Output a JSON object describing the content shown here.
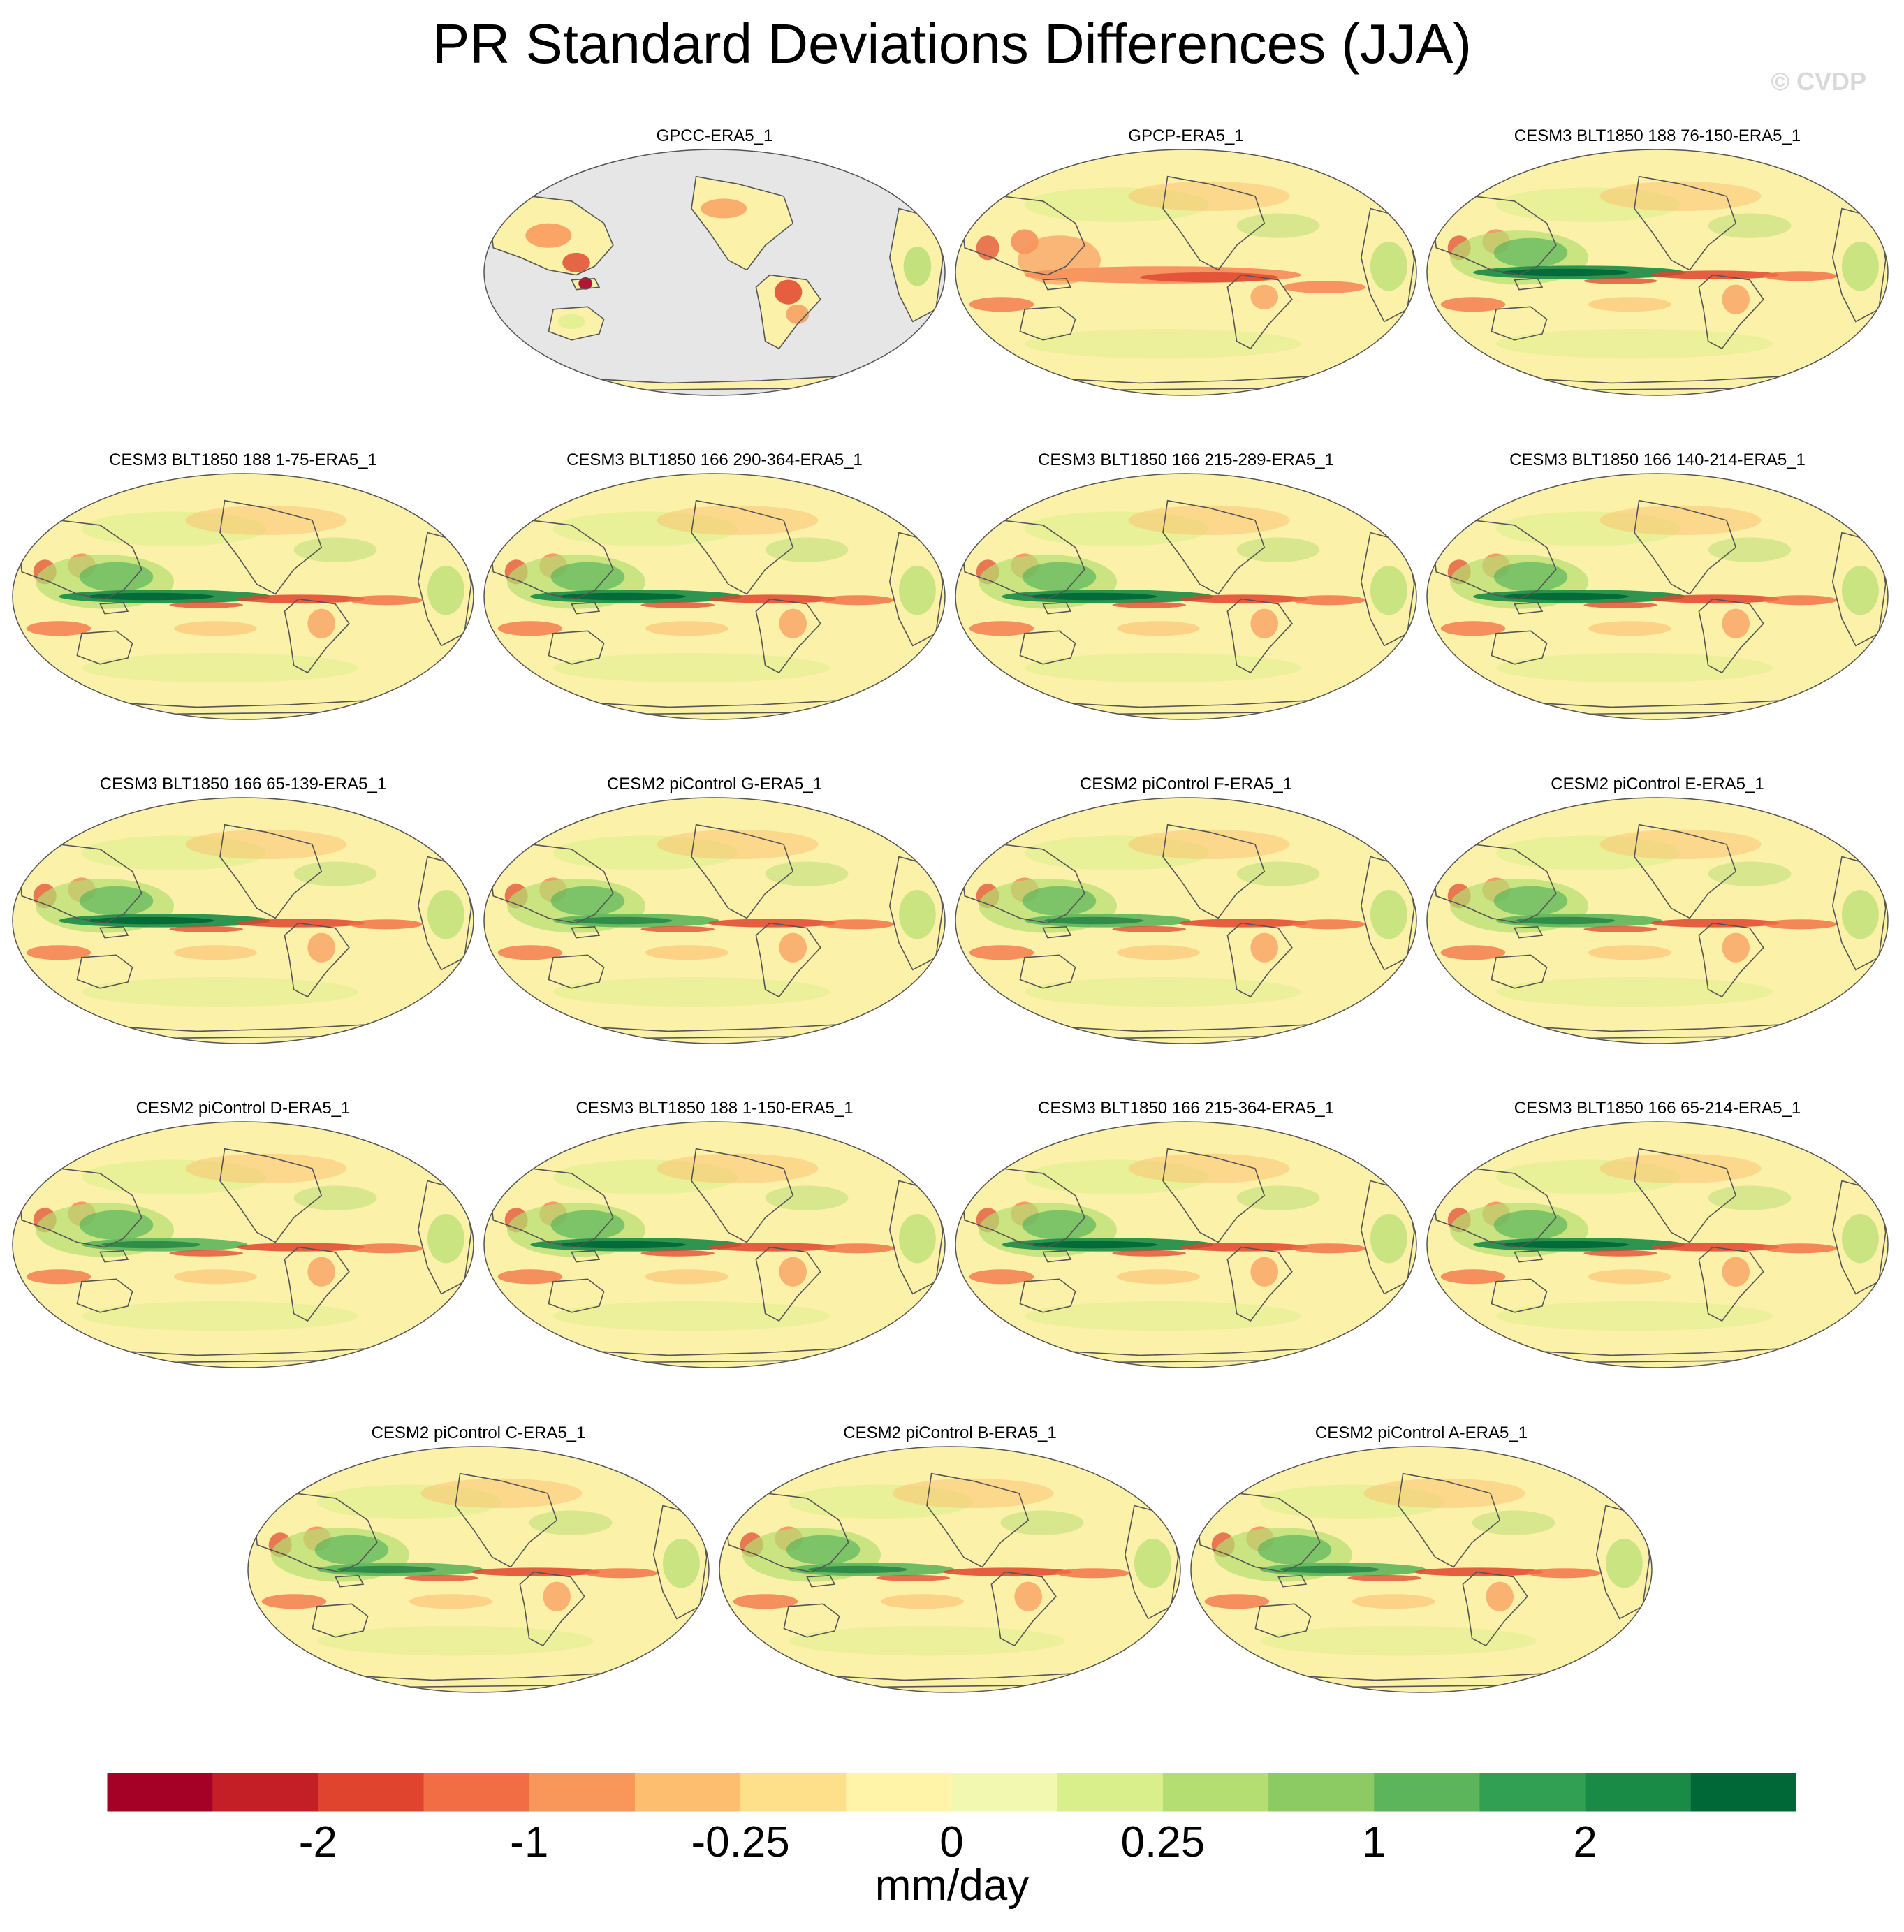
{
  "figure_title": "PR Standard Deviations Differences (JJA)",
  "watermark": "© CVDP",
  "chart_data": {
    "type": "heatmap",
    "description_type": "map-panel-grid",
    "projection": "robinson-like ellipse, centered on the Pacific",
    "title": "PR Standard Deviations Differences (JJA)",
    "panels": [
      {
        "title": "GPCC-ERA5_1",
        "masked_ocean": true,
        "tropical_pacific": "weak"
      },
      {
        "title": "GPCP-ERA5_1",
        "masked_ocean": false,
        "tropical_pacific": "negative"
      },
      {
        "title": "CESM3 BLT1850 188 76-150-ERA5_1",
        "masked_ocean": false,
        "tropical_pacific": "strong-positive"
      },
      {
        "title": "CESM3 BLT1850 188 1-75-ERA5_1",
        "masked_ocean": false,
        "tropical_pacific": "strong-positive"
      },
      {
        "title": "CESM3 BLT1850 166 290-364-ERA5_1",
        "masked_ocean": false,
        "tropical_pacific": "strong-positive"
      },
      {
        "title": "CESM3 BLT1850 166 215-289-ERA5_1",
        "masked_ocean": false,
        "tropical_pacific": "strong-positive"
      },
      {
        "title": "CESM3 BLT1850 166 140-214-ERA5_1",
        "masked_ocean": false,
        "tropical_pacific": "strong-positive"
      },
      {
        "title": "CESM3 BLT1850 166 65-139-ERA5_1",
        "masked_ocean": false,
        "tropical_pacific": "strong-positive"
      },
      {
        "title": "CESM2 piControl G-ERA5_1",
        "masked_ocean": false,
        "tropical_pacific": "moderate-positive"
      },
      {
        "title": "CESM2 piControl F-ERA5_1",
        "masked_ocean": false,
        "tropical_pacific": "moderate-positive"
      },
      {
        "title": "CESM2 piControl E-ERA5_1",
        "masked_ocean": false,
        "tropical_pacific": "moderate-positive"
      },
      {
        "title": "CESM2 piControl D-ERA5_1",
        "masked_ocean": false,
        "tropical_pacific": "moderate-positive"
      },
      {
        "title": "CESM3 BLT1850 188 1-150-ERA5_1",
        "masked_ocean": false,
        "tropical_pacific": "strong-positive"
      },
      {
        "title": "CESM3 BLT1850 166 215-364-ERA5_1",
        "masked_ocean": false,
        "tropical_pacific": "strong-positive"
      },
      {
        "title": "CESM3 BLT1850 166 65-214-ERA5_1",
        "masked_ocean": false,
        "tropical_pacific": "strong-positive"
      },
      {
        "title": "CESM2 piControl C-ERA5_1",
        "masked_ocean": false,
        "tropical_pacific": "moderate-positive"
      },
      {
        "title": "CESM2 piControl B-ERA5_1",
        "masked_ocean": false,
        "tropical_pacific": "moderate-positive"
      },
      {
        "title": "CESM2 piControl A-ERA5_1",
        "masked_ocean": false,
        "tropical_pacific": "moderate-positive"
      }
    ],
    "colorbar": {
      "colors": [
        "#a50026",
        "#c41e27",
        "#e0442e",
        "#f36d44",
        "#f9975b",
        "#fdbf6f",
        "#fee08b",
        "#fff4a8",
        "#f3f8b0",
        "#d9ef8b",
        "#b5de72",
        "#8ccb63",
        "#5db55b",
        "#31a052",
        "#1a8a47",
        "#006837"
      ],
      "tick_labels": [
        "-2",
        "-1",
        "-0.25",
        "0",
        "0.25",
        "1",
        "2"
      ],
      "tick_boundaries": [
        2,
        4,
        6,
        8,
        10,
        12,
        14
      ],
      "units": "mm/day"
    },
    "map_colors": {
      "base": "#fbf1a8",
      "masked": "#e6e6e6",
      "coast": "#555555"
    }
  }
}
